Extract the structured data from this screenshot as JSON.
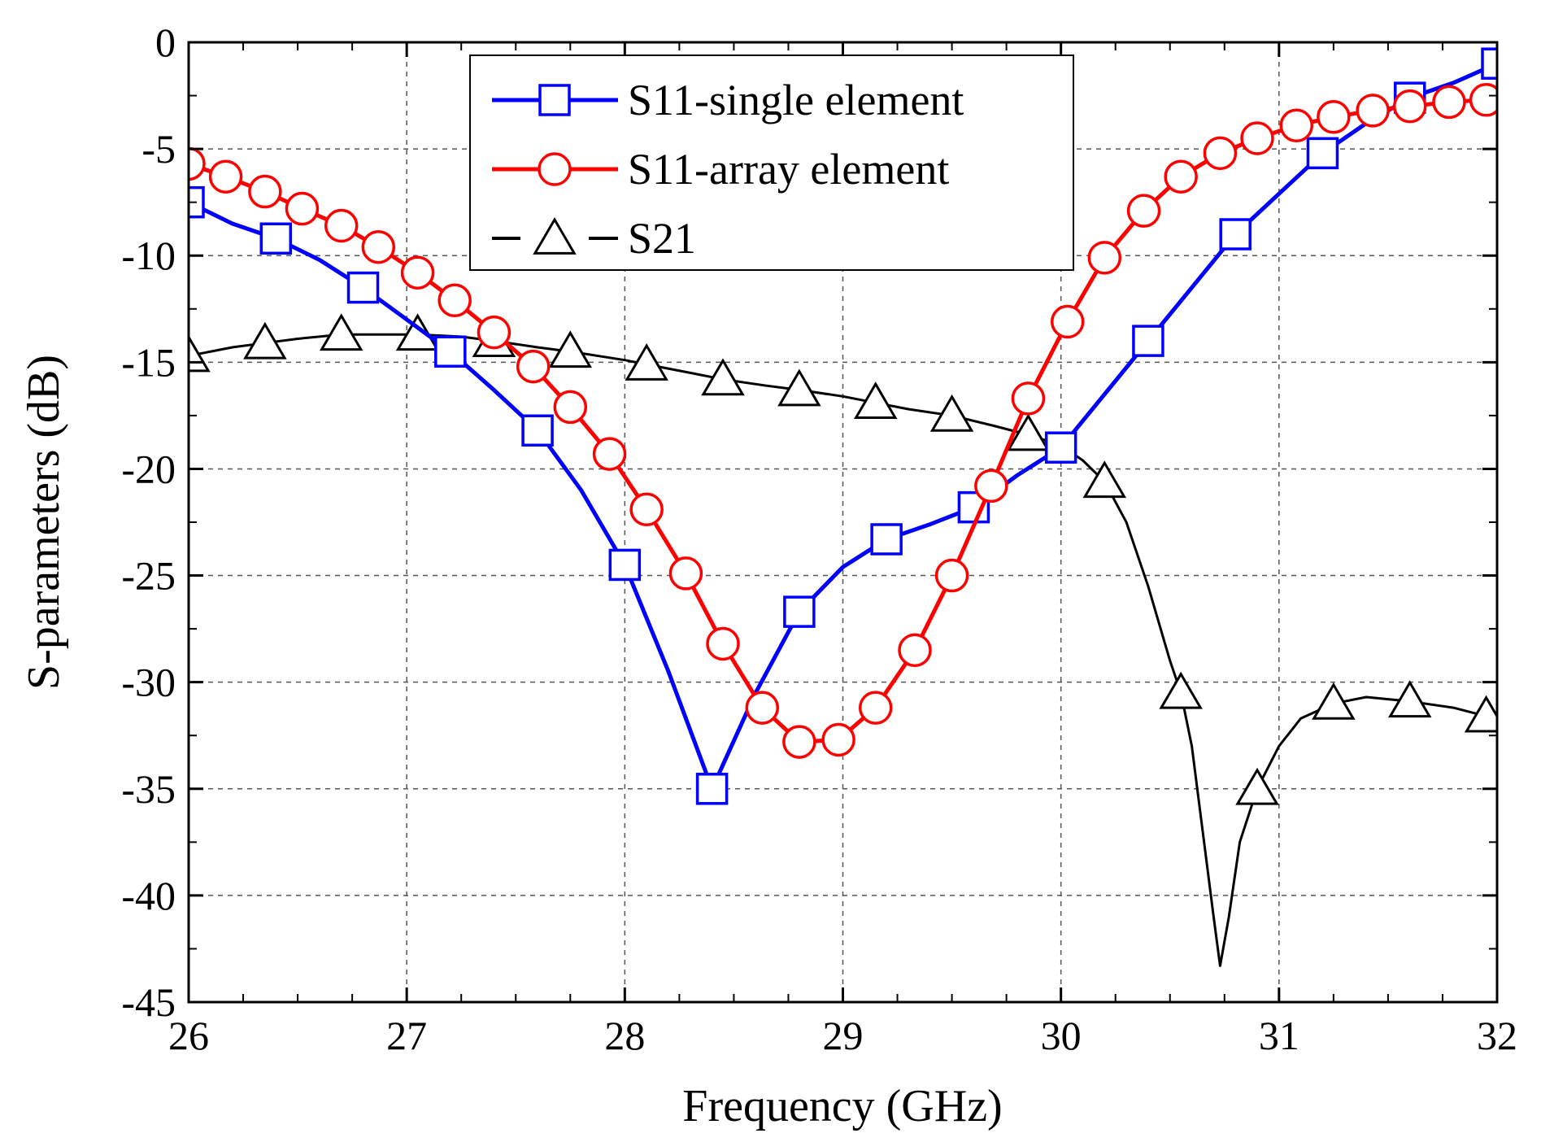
{
  "chart_data": {
    "type": "line",
    "title": "",
    "xlabel": "Frequency (GHz)",
    "ylabel": "S-parameters (dB)",
    "xlim": [
      26,
      32
    ],
    "ylim": [
      -45,
      0
    ],
    "xticks": [
      26,
      27,
      28,
      29,
      30,
      31,
      32
    ],
    "yticks": [
      0,
      -5,
      -10,
      -15,
      -20,
      -25,
      -30,
      -35,
      -40,
      -45
    ],
    "xtick_labels": [
      "26",
      "27",
      "28",
      "29",
      "30",
      "31",
      "32"
    ],
    "ytick_labels": [
      "0",
      "-5",
      "-10",
      "-15",
      "-20",
      "-25",
      "-30",
      "-35",
      "-40",
      "-45"
    ],
    "grid": true,
    "legend_position": "top-center",
    "series": [
      {
        "name": "S11-single element",
        "color": "#0000ff",
        "marker": "square",
        "dash": "solid",
        "x": [
          26.0,
          26.1,
          26.2,
          26.4,
          26.6,
          26.8,
          27.0,
          27.2,
          27.4,
          27.6,
          27.8,
          28.0,
          28.2,
          28.4,
          28.6,
          28.8,
          29.0,
          29.2,
          29.4,
          29.6,
          29.8,
          30.0,
          30.2,
          30.4,
          30.6,
          30.8,
          31.0,
          31.2,
          31.4,
          31.6,
          31.8,
          32.0
        ],
        "y": [
          -7.5,
          -8.0,
          -8.5,
          -9.2,
          -10.2,
          -11.5,
          -13.0,
          -14.5,
          -16.3,
          -18.2,
          -21.0,
          -24.5,
          -29.5,
          -35.0,
          -30.5,
          -26.7,
          -24.6,
          -23.3,
          -22.6,
          -21.8,
          -20.3,
          -19.0,
          -16.5,
          -14.0,
          -11.5,
          -9.0,
          -7.1,
          -5.2,
          -3.8,
          -2.6,
          -1.9,
          -1.0
        ],
        "markers_x": [
          26.0,
          26.4,
          26.8,
          27.2,
          27.6,
          28.0,
          28.4,
          28.8,
          29.2,
          29.6,
          30.0,
          30.4,
          30.8,
          31.2,
          31.6,
          32.0
        ],
        "markers_y": [
          -7.5,
          -9.2,
          -11.5,
          -14.5,
          -18.2,
          -24.5,
          -35.0,
          -26.7,
          -23.3,
          -21.8,
          -19.0,
          -14.0,
          -9.0,
          -5.2,
          -2.6,
          -1.0
        ]
      },
      {
        "name": "S11-array element",
        "color": "#ff0000",
        "marker": "circle",
        "dash": "solid",
        "x": [
          26.0,
          26.17,
          26.35,
          26.52,
          26.7,
          26.87,
          27.05,
          27.22,
          27.4,
          27.58,
          27.75,
          27.93,
          28.1,
          28.28,
          28.45,
          28.63,
          28.8,
          28.98,
          29.15,
          29.33,
          29.5,
          29.68,
          29.85,
          30.03,
          30.2,
          30.38,
          30.55,
          30.73,
          30.9,
          31.08,
          31.25,
          31.43,
          31.6,
          31.78,
          31.95
        ],
        "y": [
          -5.7,
          -6.3,
          -7.0,
          -7.8,
          -8.6,
          -9.6,
          -10.8,
          -12.1,
          -13.6,
          -15.2,
          -17.1,
          -19.3,
          -21.9,
          -24.9,
          -28.2,
          -31.2,
          -32.8,
          -32.7,
          -31.2,
          -28.5,
          -25.0,
          -20.8,
          -16.7,
          -13.1,
          -10.1,
          -7.9,
          -6.3,
          -5.2,
          -4.5,
          -3.9,
          -3.5,
          -3.2,
          -3.0,
          -2.8,
          -2.7
        ]
      },
      {
        "name": "S21",
        "color": "#000000",
        "marker": "triangle",
        "dash": "dashed",
        "x": [
          26.0,
          26.2,
          26.35,
          26.5,
          26.7,
          26.85,
          27.05,
          27.25,
          27.4,
          27.6,
          27.75,
          28.0,
          28.1,
          28.3,
          28.45,
          28.65,
          28.8,
          29.0,
          29.15,
          29.3,
          29.5,
          29.7,
          29.85,
          30.0,
          30.1,
          30.2,
          30.3,
          30.4,
          30.5,
          30.55,
          30.6,
          30.65,
          30.7,
          30.73,
          30.77,
          30.82,
          30.9,
          31.0,
          31.1,
          31.25,
          31.4,
          31.6,
          31.8,
          31.95,
          32.0
        ],
        "y": [
          -14.7,
          -14.3,
          -14.1,
          -13.9,
          -13.7,
          -13.7,
          -13.7,
          -13.8,
          -14.0,
          -14.3,
          -14.5,
          -14.9,
          -15.1,
          -15.5,
          -15.8,
          -16.1,
          -16.3,
          -16.6,
          -16.9,
          -17.2,
          -17.5,
          -18.0,
          -18.4,
          -18.9,
          -19.6,
          -20.6,
          -22.5,
          -25.5,
          -29.0,
          -30.5,
          -33.0,
          -37.0,
          -41.0,
          -43.3,
          -41.0,
          -37.5,
          -35.0,
          -33.0,
          -31.7,
          -31.0,
          -30.7,
          -30.9,
          -31.2,
          -31.6,
          -31.8
        ],
        "markers_x": [
          26.0,
          26.35,
          26.7,
          27.05,
          27.4,
          27.75,
          28.1,
          28.45,
          28.8,
          29.15,
          29.5,
          29.85,
          30.2,
          30.55,
          30.9,
          31.25,
          31.6,
          31.95
        ],
        "markers_y": [
          -14.7,
          -14.1,
          -13.7,
          -13.7,
          -14.0,
          -14.5,
          -15.1,
          -15.8,
          -16.3,
          -16.9,
          -17.5,
          -18.4,
          -20.6,
          -30.5,
          -35.0,
          -31.0,
          -30.9,
          -31.6
        ]
      }
    ]
  }
}
